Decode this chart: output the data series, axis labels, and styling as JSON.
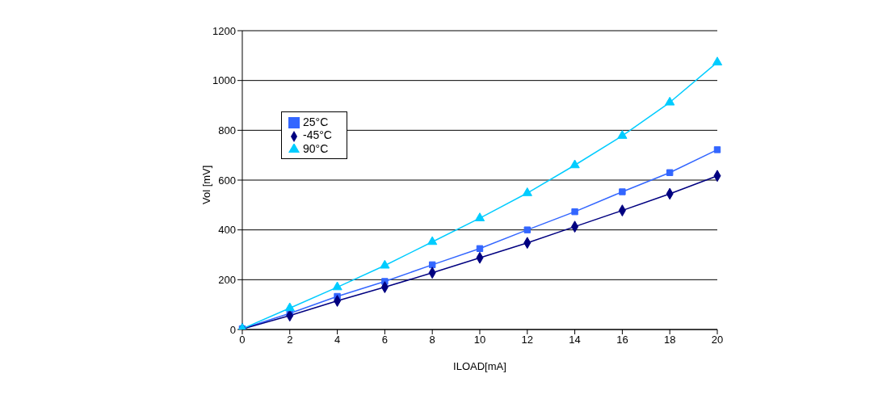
{
  "chart_data": {
    "type": "line",
    "xlabel": "ILOAD[mA]",
    "ylabel": "Vol [mV]",
    "categories": [
      "0",
      "2",
      "4",
      "6",
      "8",
      "10",
      "12",
      "14",
      "16",
      "18",
      "20"
    ],
    "series": [
      {
        "name": "25°C",
        "color": "#3366ff",
        "marker": "square",
        "values": [
          3,
          65,
          133,
          193,
          260,
          325,
          400,
          473,
          553,
          630,
          722
        ]
      },
      {
        "name": "-45°C",
        "color": "#000080",
        "marker": "diamond",
        "values": [
          2,
          56,
          115,
          170,
          228,
          288,
          348,
          413,
          478,
          545,
          617
        ]
      },
      {
        "name": "90°C",
        "color": "#00ccff",
        "marker": "triangle",
        "values": [
          3,
          86,
          170,
          257,
          352,
          447,
          548,
          660,
          778,
          912,
          1073
        ]
      }
    ],
    "ylim": [
      0,
      1200
    ],
    "yticks": [
      0,
      200,
      400,
      600,
      800,
      1000,
      1200
    ],
    "grid": "y",
    "legend": "top left",
    "line_style": "solid"
  }
}
